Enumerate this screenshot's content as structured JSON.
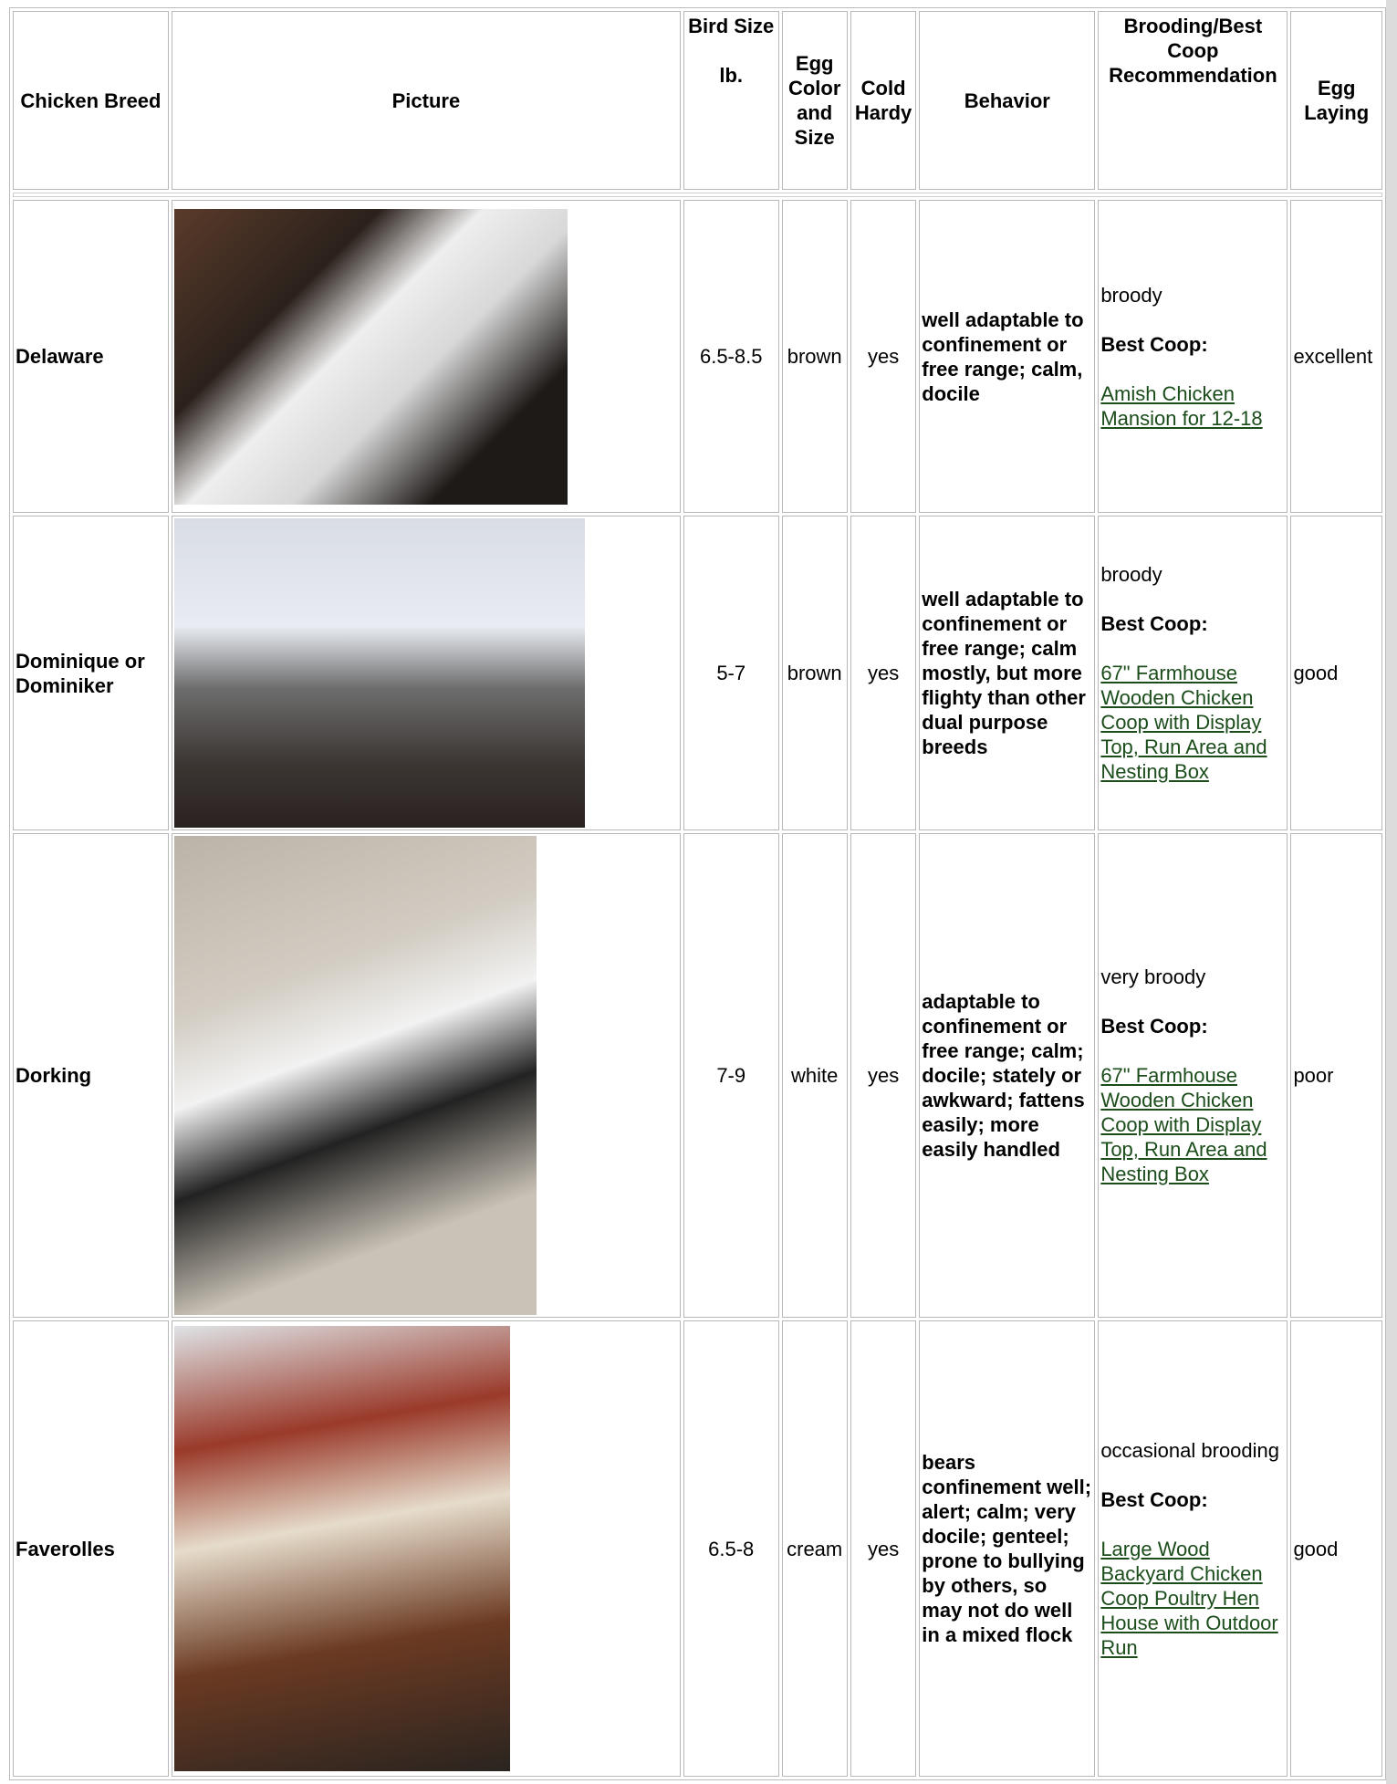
{
  "table": {
    "header": [
      "Chicken Breed",
      "Picture",
      {
        "title": "Bird Size",
        "unit": "lb."
      },
      "Egg Color and Size",
      "Cold Hardy",
      "Behavior",
      "Brooding/Best Coop Recommendation",
      "Egg Laying"
    ],
    "rows": [
      {
        "breed": "Delaware",
        "size": "6.5-8.5",
        "egg": "brown",
        "cold": "yes",
        "behavior": "well adaptable to confinement or free range; calm, docile",
        "brooding": "broody",
        "coop_label": "Best Coop:",
        "coop": "Amish Chicken Mansion for 12-18",
        "laying": "excellent"
      },
      {
        "breed": "Dominique or Dominiker",
        "size": "5-7",
        "egg": "brown",
        "cold": "yes",
        "behavior": "well adaptable to confinement or free range; calm mostly, but more flighty than other dual purpose breeds",
        "brooding": "broody",
        "coop_label": "Best Coop:",
        "coop": "67\" Farmhouse Wooden Chicken Coop with Display Top, Run Area and Nesting Box",
        "laying": "good"
      },
      {
        "breed": "Dorking",
        "size": "7-9",
        "egg": "white",
        "cold": "yes",
        "behavior": "adaptable to confinement or free range; calm; docile; stately or awkward; fattens easily; more easily handled",
        "brooding": "very broody",
        "coop_label": "Best Coop:",
        "coop": "67\" Farmhouse Wooden Chicken Coop with Display Top, Run Area and Nesting Box",
        "laying": "poor"
      },
      {
        "breed": "Faverolles",
        "size": "6.5-8",
        "egg": "cream",
        "cold": "yes",
        "behavior": "bears confinement well; alert; calm; very docile; genteel; prone to bullying by others, so may not do well in a mixed flock",
        "brooding": "occasional brooding",
        "coop_label": "Best Coop:",
        "coop": "Large Wood Backyard Chicken Coop Poultry Hen House with Outdoor Run",
        "laying": "good"
      }
    ]
  }
}
